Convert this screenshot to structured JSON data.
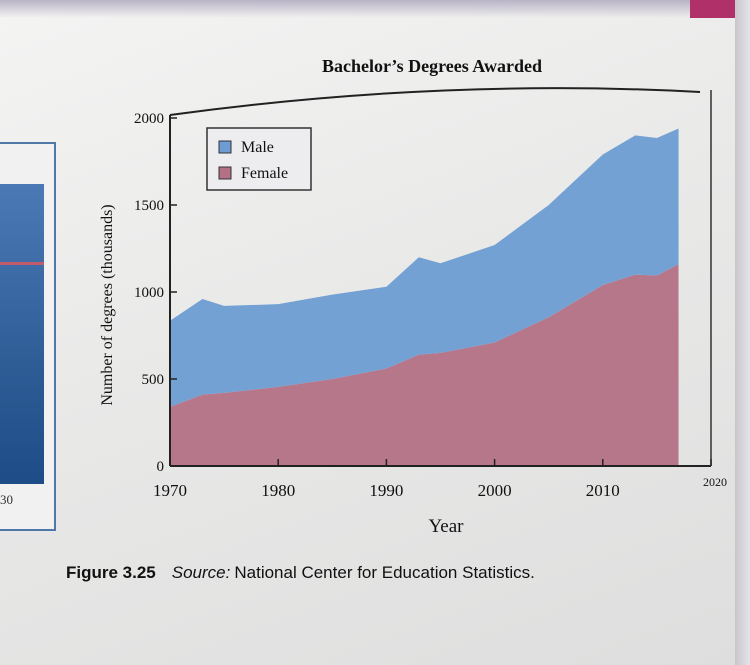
{
  "figure": {
    "number": "Figure 3.25",
    "source_label": "Source:",
    "source_text": "National Center for Education Statistics."
  },
  "left_panel": {
    "tick_label": "30"
  },
  "chart_data": {
    "type": "area",
    "stacked": true,
    "title": "Bachelor’s Degrees Awarded",
    "xlabel": "Year",
    "ylabel": "Number of degrees (thousands)",
    "xlim": [
      1970,
      2020
    ],
    "ylim": [
      0,
      2000
    ],
    "xticks": [
      1970,
      1980,
      1990,
      2000,
      2010,
      2020
    ],
    "yticks": [
      0,
      500,
      1000,
      1500,
      2000
    ],
    "legend_position": "top-left",
    "x": [
      1970,
      1973,
      1975,
      1980,
      1985,
      1990,
      1993,
      1995,
      2000,
      2005,
      2010,
      2013,
      2015,
      2017
    ],
    "series": [
      {
        "name": "Female",
        "color": "#b47185",
        "values": [
          340,
          410,
          420,
          455,
          500,
          560,
          640,
          650,
          710,
          855,
          1040,
          1100,
          1095,
          1160
        ]
      },
      {
        "name": "Male",
        "color": "#6e9dd3",
        "values": [
          495,
          550,
          500,
          475,
          485,
          470,
          560,
          515,
          560,
          645,
          750,
          800,
          790,
          780
        ]
      }
    ]
  }
}
